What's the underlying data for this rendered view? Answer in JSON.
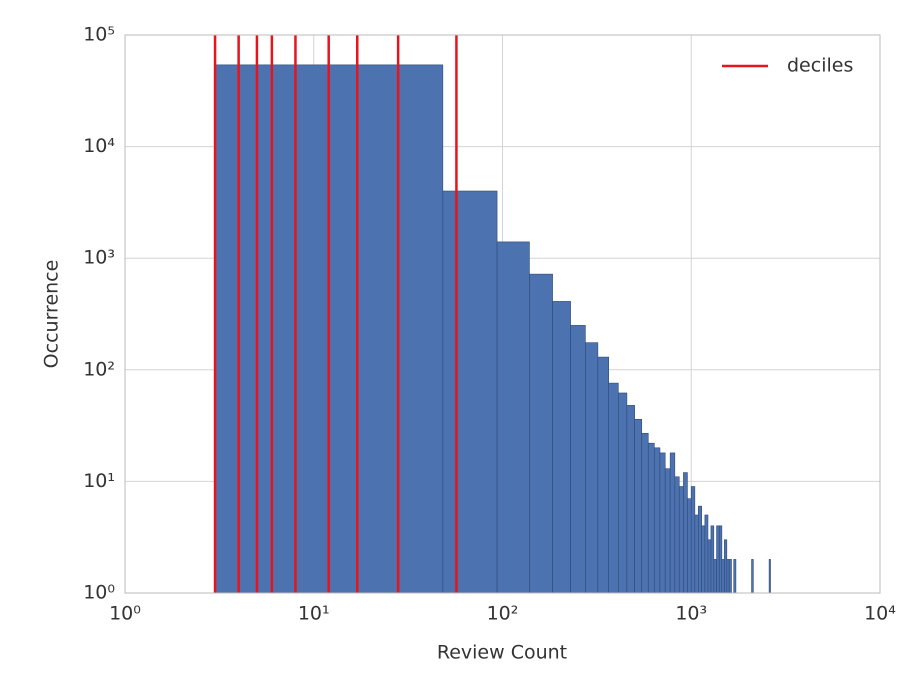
{
  "chart_data": {
    "type": "histogram",
    "xlabel": "Review Count",
    "ylabel": "Occurrence",
    "xlog": true,
    "ylog": true,
    "grid": true,
    "color": "#4c72b0",
    "edgecolor": "#2f4a78",
    "bins": [
      3,
      48.3,
      93.6,
      138.9,
      184.2,
      229.5,
      274.8,
      320.1,
      365.4,
      410.7,
      456,
      501.3,
      546.6,
      591.9,
      637.2,
      682.5,
      727.8,
      773.1,
      818.4,
      863.7,
      909,
      954.3,
      999.6,
      1044.9,
      1090.2,
      1135.5,
      1180.8,
      1226.1,
      1271.4,
      1316.7,
      1362,
      1407.3,
      1452.6,
      1497.9,
      1543.2,
      1588.5,
      1633.8,
      1679.1,
      1724.4,
      1769.7,
      1815,
      1860.3,
      1905.6,
      1950.9,
      1996.2,
      2041.5,
      2086.8,
      2132.1,
      2177.4,
      2222.7,
      2268,
      2313.3,
      2358.6,
      2403.9,
      2449.2,
      2494.5,
      2539.8,
      2585.1,
      2630.4,
      2675.7,
      2721,
      2766.3,
      2811.6
    ],
    "counts": [
      54000,
      4000,
      1400,
      720,
      410,
      250,
      175,
      130,
      76,
      62,
      48,
      36,
      27,
      22,
      20,
      18,
      13,
      18,
      11,
      9,
      12,
      7,
      9,
      5,
      6,
      4,
      5,
      3,
      4,
      2,
      4,
      4,
      2,
      3,
      2,
      2,
      0,
      2,
      1,
      0,
      1,
      0,
      1,
      0,
      0,
      1,
      2,
      0,
      0,
      0,
      1,
      0,
      0,
      0,
      0,
      0,
      0,
      2,
      0,
      1,
      0,
      0
    ],
    "vlines": {
      "name": "deciles",
      "color": "#e8141c",
      "values": [
        3,
        4,
        5,
        6,
        8,
        12,
        17,
        28,
        57
      ]
    },
    "legend": "upper right",
    "xlim": [
      1,
      10000
    ],
    "ylim": [
      1,
      100000
    ],
    "xticks": [
      {
        "value": 1,
        "label": "10⁰"
      },
      {
        "value": 10,
        "label": "10¹"
      },
      {
        "value": 100,
        "label": "10²"
      },
      {
        "value": 1000,
        "label": "10³"
      },
      {
        "value": 10000,
        "label": "10⁴"
      }
    ],
    "yticks": [
      {
        "value": 1,
        "label": "10⁰"
      },
      {
        "value": 10,
        "label": "10¹"
      },
      {
        "value": 100,
        "label": "10²"
      },
      {
        "value": 1000,
        "label": "10³"
      },
      {
        "value": 10000,
        "label": "10⁴"
      },
      {
        "value": 100000,
        "label": "10⁵"
      }
    ]
  }
}
